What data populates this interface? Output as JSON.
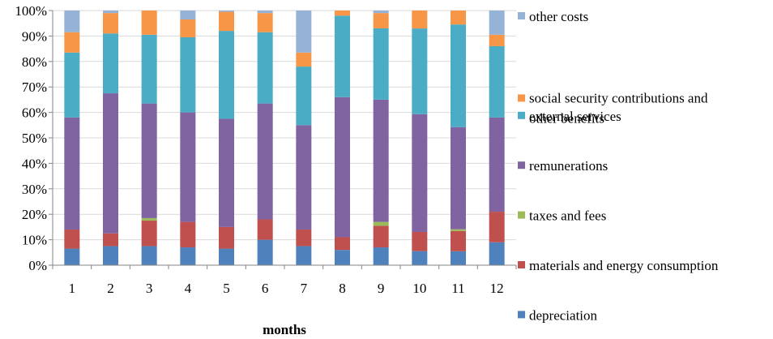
{
  "chart_data": {
    "type": "bar",
    "stacked": "percent",
    "categories": [
      "1",
      "2",
      "3",
      "4",
      "5",
      "6",
      "7",
      "8",
      "9",
      "10",
      "11",
      "12"
    ],
    "xlabel": "months",
    "ylabel": "",
    "ylim": [
      0,
      100
    ],
    "yticks": [
      "0%",
      "10%",
      "20%",
      "30%",
      "40%",
      "50%",
      "60%",
      "70%",
      "80%",
      "90%",
      "100%"
    ],
    "grid": true,
    "legend_position": "right",
    "series": [
      {
        "name": "depreciation",
        "color": "#4F81BD",
        "values": [
          6.5,
          7.5,
          7.5,
          7,
          6.5,
          10,
          7.5,
          6,
          7,
          5.5,
          5.5,
          9
        ]
      },
      {
        "name": "materials and energy consumption",
        "color": "#C0504D",
        "values": [
          7.5,
          5,
          10,
          10,
          8.5,
          8,
          6.5,
          5,
          8.5,
          7.5,
          8,
          12
        ]
      },
      {
        "name": "taxes and fees",
        "color": "#9BBB59",
        "values": [
          0,
          0,
          1,
          0,
          0,
          0,
          0,
          0,
          1.5,
          0,
          0.7,
          0
        ]
      },
      {
        "name": "remunerations",
        "color": "#8064A2",
        "values": [
          44,
          55,
          45,
          43,
          42.5,
          45.5,
          41,
          55,
          48,
          46,
          40.3,
          37
        ]
      },
      {
        "name": "external services",
        "color": "#4BACC6",
        "values": [
          25.5,
          23.5,
          27,
          29.5,
          34.5,
          28,
          23,
          32,
          28,
          33.5,
          40.5,
          28
        ]
      },
      {
        "name": "social security contributions and other benefits",
        "color": "#F79646",
        "values": [
          8,
          8,
          9.5,
          7,
          7.5,
          7.5,
          5.5,
          2,
          6,
          7,
          5.5,
          4.5
        ]
      },
      {
        "name": "other costs",
        "color": "#95B3D7",
        "values": [
          8.5,
          1,
          0,
          3.5,
          0.5,
          1,
          16.5,
          0,
          1,
          0,
          0,
          9.5
        ]
      }
    ],
    "legend_order": [
      "other costs",
      "social security contributions and other benefits",
      "external services",
      "remunerations",
      "taxes and fees",
      "materials and energy consumption",
      "depreciation"
    ],
    "legend_lines": {
      "social security contributions and other benefits": [
        "social security contributions and",
        "other benefits"
      ],
      "materials and energy consumption": [
        "materials and energy consumption"
      ]
    }
  }
}
